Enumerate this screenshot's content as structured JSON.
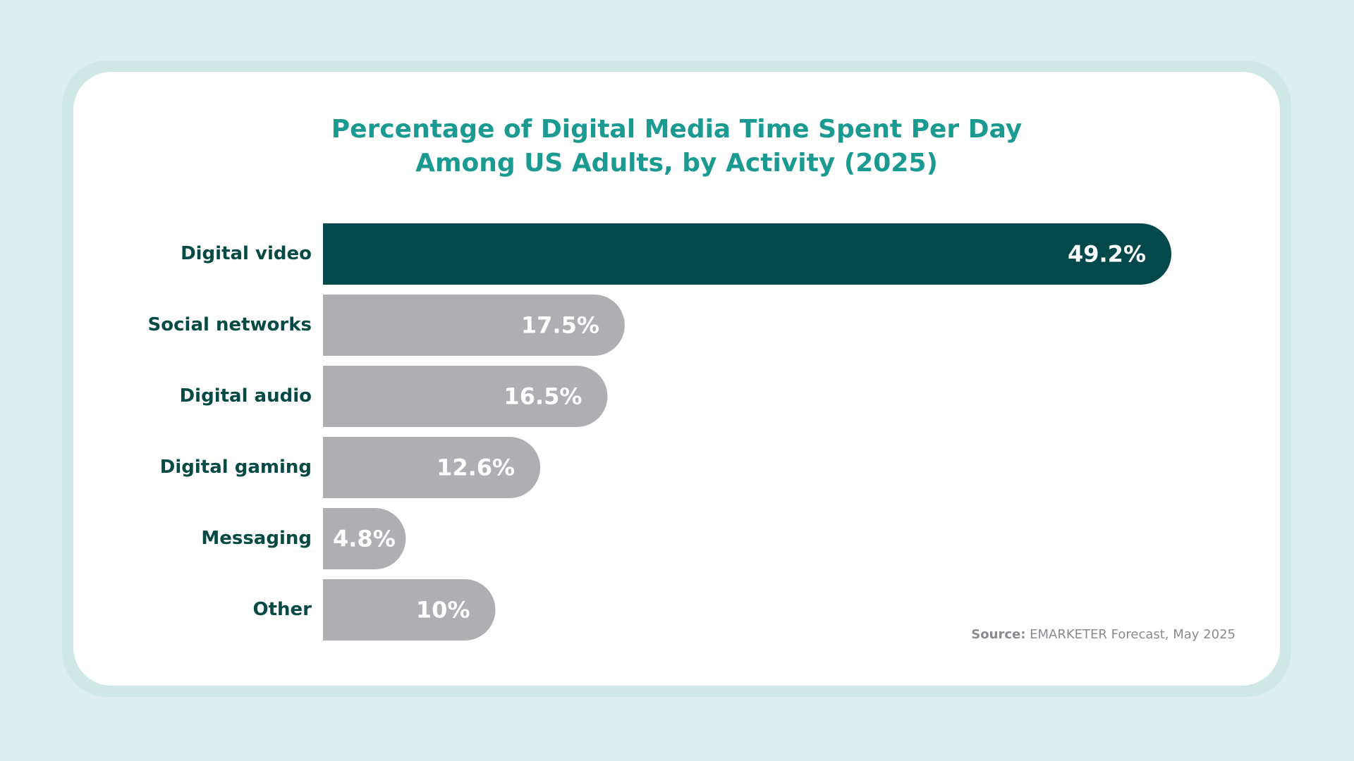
{
  "colors": {
    "background": "#dcefee",
    "title": "#1a9a90",
    "label": "#064a45",
    "highlight_bar": "#03484a",
    "bar": "#afafb3",
    "bar_text": "#ffffff",
    "source": "#8a8a8f"
  },
  "source": {
    "label": "Source:",
    "text": "EMARKETER Forecast, May 2025"
  },
  "chart_data": {
    "type": "bar",
    "orientation": "horizontal",
    "title": "Percentage of Digital Media Time Spent Per Day Among US Adults, by Activity (2025)",
    "title_lines": [
      "Percentage of Digital Media Time Spent Per Day",
      "Among US Adults, by Activity (2025)"
    ],
    "categories": [
      "Digital video",
      "Social networks",
      "Digital audio",
      "Digital gaming",
      "Messaging",
      "Other"
    ],
    "values": [
      49.2,
      17.5,
      16.5,
      12.6,
      4.8,
      10
    ],
    "data_labels": [
      "49.2%",
      "17.5%",
      "16.5%",
      "12.6%",
      "4.8%",
      "10%"
    ],
    "highlighted_category": "Digital video",
    "xlabel": "",
    "ylabel": "",
    "unit": "%",
    "xlim": [
      0,
      49.2
    ],
    "grid": false,
    "legend": "none"
  }
}
